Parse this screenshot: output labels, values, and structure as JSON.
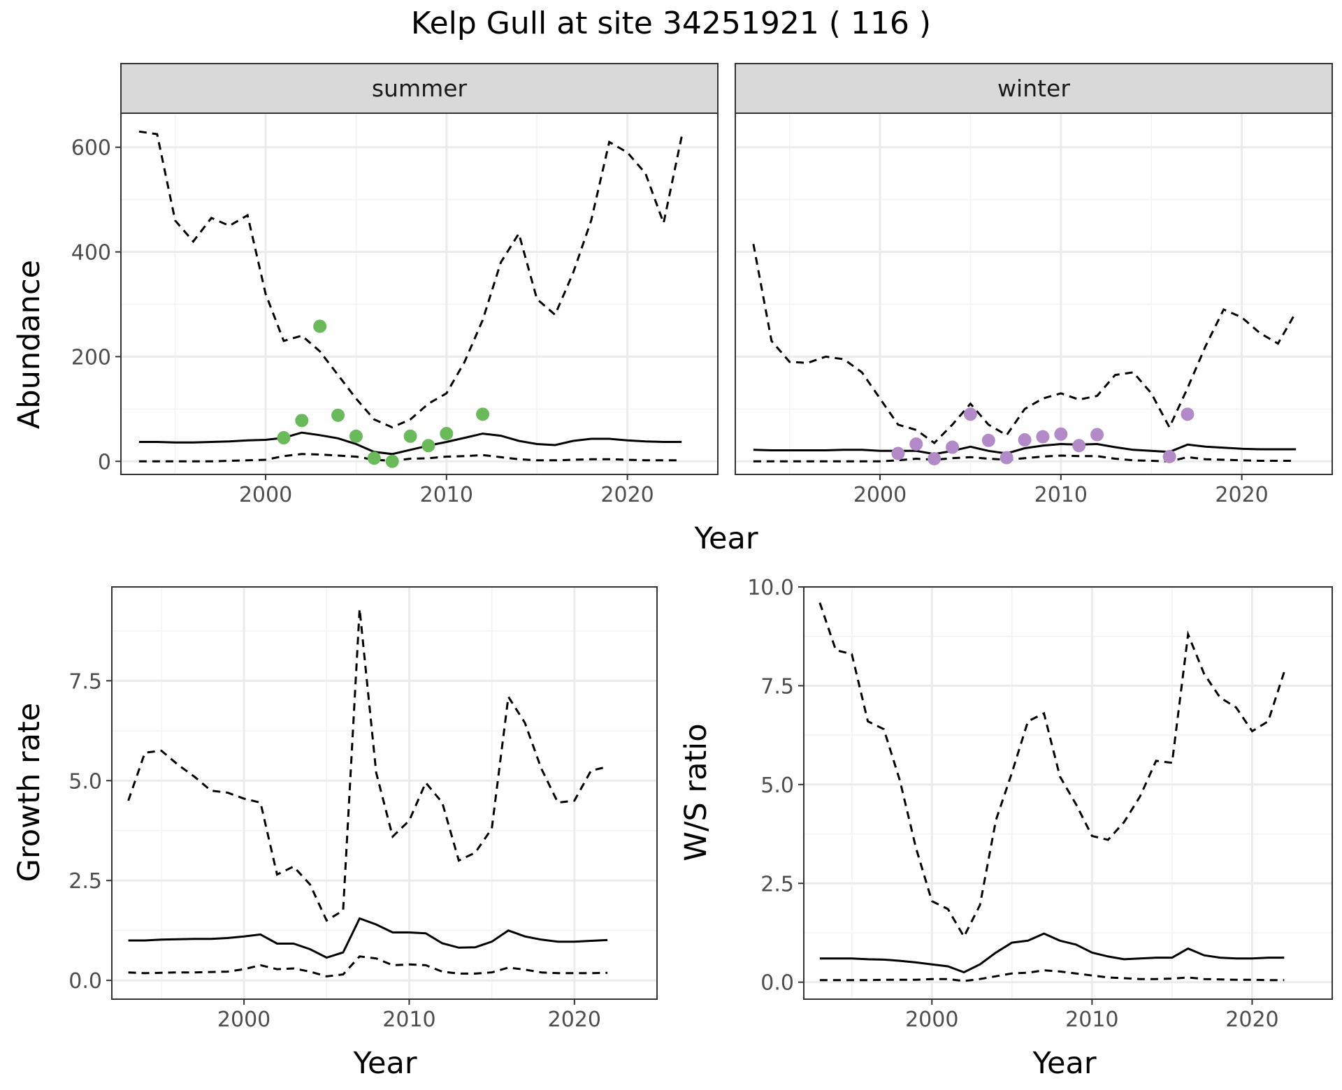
{
  "figure": {
    "title": "Kelp Gull at site 34251921 ( 116 )"
  },
  "chart_data": [
    {
      "type": "line",
      "panel": "abundance",
      "facets": [
        "summer",
        "winter"
      ],
      "xlabel": "Year",
      "ylabel": "Abundance",
      "xlim": [
        1992,
        2025
      ],
      "ylim": [
        -25,
        665
      ],
      "x_ticks": [
        2000,
        2010,
        2020
      ],
      "y_ticks": [
        0,
        200,
        400,
        600
      ],
      "grid": true,
      "legend": "none",
      "series_style": {
        "estimate": "solid",
        "lower": "dashed",
        "upper": "dashed"
      },
      "point_colors": {
        "summer": "#6aba5c",
        "winter": "#b28ac8"
      },
      "panels": [
        {
          "facet": "summer",
          "x": [
            1993,
            1994,
            1995,
            1996,
            1997,
            1998,
            1999,
            2000,
            2001,
            2002,
            2003,
            2004,
            2005,
            2006,
            2007,
            2008,
            2009,
            2010,
            2011,
            2012,
            2013,
            2014,
            2015,
            2016,
            2017,
            2018,
            2019,
            2020,
            2021,
            2022,
            2023
          ],
          "estimate": [
            37,
            37,
            36,
            36,
            37,
            38,
            40,
            41,
            45,
            55,
            50,
            44,
            33,
            18,
            14,
            22,
            30,
            37,
            45,
            53,
            49,
            39,
            33,
            31,
            39,
            43,
            43,
            40,
            38,
            37,
            37
          ],
          "lower": [
            0,
            0,
            0,
            0,
            0,
            1,
            2,
            3,
            10,
            14,
            13,
            11,
            9,
            3,
            1,
            5,
            6,
            9,
            10,
            12,
            8,
            4,
            2,
            2,
            3,
            4,
            4,
            3,
            2,
            2,
            2
          ],
          "upper": [
            630,
            625,
            460,
            420,
            465,
            450,
            470,
            320,
            230,
            240,
            210,
            165,
            120,
            80,
            65,
            80,
            110,
            130,
            190,
            270,
            380,
            435,
            310,
            280,
            360,
            460,
            610,
            590,
            550,
            455,
            620
          ],
          "points": [
            {
              "x": 2001,
              "y": 45
            },
            {
              "x": 2002,
              "y": 78
            },
            {
              "x": 2003,
              "y": 258
            },
            {
              "x": 2004,
              "y": 88
            },
            {
              "x": 2005,
              "y": 48
            },
            {
              "x": 2006,
              "y": 6
            },
            {
              "x": 2007,
              "y": 0
            },
            {
              "x": 2008,
              "y": 48
            },
            {
              "x": 2009,
              "y": 30
            },
            {
              "x": 2010,
              "y": 53
            },
            {
              "x": 2012,
              "y": 90
            }
          ]
        },
        {
          "facet": "winter",
          "x": [
            1993,
            1994,
            1995,
            1996,
            1997,
            1998,
            1999,
            2000,
            2001,
            2002,
            2003,
            2004,
            2005,
            2006,
            2007,
            2008,
            2009,
            2010,
            2011,
            2012,
            2013,
            2014,
            2015,
            2016,
            2017,
            2018,
            2019,
            2020,
            2021,
            2022,
            2023
          ],
          "estimate": [
            22,
            21,
            21,
            21,
            21,
            22,
            22,
            20,
            20,
            20,
            14,
            20,
            28,
            20,
            15,
            25,
            30,
            33,
            32,
            33,
            27,
            22,
            20,
            18,
            32,
            28,
            26,
            24,
            23,
            23,
            23
          ],
          "lower": [
            0,
            0,
            0,
            0,
            0,
            0,
            0,
            0,
            2,
            5,
            3,
            6,
            8,
            5,
            3,
            6,
            9,
            11,
            10,
            10,
            5,
            2,
            1,
            0,
            8,
            4,
            3,
            2,
            1,
            1,
            1
          ],
          "upper": [
            415,
            230,
            190,
            188,
            200,
            195,
            170,
            120,
            70,
            60,
            35,
            70,
            110,
            70,
            50,
            100,
            120,
            130,
            118,
            125,
            165,
            170,
            130,
            65,
            140,
            220,
            290,
            275,
            245,
            225,
            285
          ],
          "points": [
            {
              "x": 2001,
              "y": 15
            },
            {
              "x": 2002,
              "y": 33
            },
            {
              "x": 2003,
              "y": 5
            },
            {
              "x": 2004,
              "y": 27
            },
            {
              "x": 2005,
              "y": 90
            },
            {
              "x": 2006,
              "y": 40
            },
            {
              "x": 2007,
              "y": 7
            },
            {
              "x": 2008,
              "y": 41
            },
            {
              "x": 2009,
              "y": 47
            },
            {
              "x": 2010,
              "y": 52
            },
            {
              "x": 2011,
              "y": 30
            },
            {
              "x": 2012,
              "y": 51
            },
            {
              "x": 2016,
              "y": 9
            },
            {
              "x": 2017,
              "y": 90
            }
          ]
        }
      ]
    },
    {
      "type": "line",
      "panel": "growth",
      "xlabel": "Year",
      "ylabel": "Growth rate",
      "xlim": [
        1992,
        2025
      ],
      "ylim": [
        -0.47,
        9.85
      ],
      "x_ticks": [
        2000,
        2010,
        2020
      ],
      "y_ticks": [
        0.0,
        2.5,
        5.0,
        7.5
      ],
      "y_tick_labels": [
        "0.0",
        "2.5",
        "5.0",
        "7.5"
      ],
      "grid": true,
      "legend": "none",
      "series_style": {
        "estimate": "solid",
        "lower": "dashed",
        "upper": "dashed"
      },
      "x": [
        1993,
        1994,
        1995,
        1996,
        1997,
        1998,
        1999,
        2000,
        2001,
        2002,
        2003,
        2004,
        2005,
        2006,
        2007,
        2008,
        2009,
        2010,
        2011,
        2012,
        2013,
        2014,
        2015,
        2016,
        2017,
        2018,
        2019,
        2020,
        2021,
        2022
      ],
      "estimate": [
        1.0,
        1.0,
        1.02,
        1.03,
        1.04,
        1.04,
        1.06,
        1.1,
        1.15,
        0.92,
        0.92,
        0.78,
        0.57,
        0.7,
        1.55,
        1.4,
        1.2,
        1.2,
        1.18,
        0.93,
        0.82,
        0.83,
        0.97,
        1.25,
        1.1,
        1.02,
        0.97,
        0.97,
        0.99,
        1.01
      ],
      "lower": [
        0.2,
        0.18,
        0.19,
        0.2,
        0.2,
        0.21,
        0.22,
        0.28,
        0.38,
        0.28,
        0.3,
        0.22,
        0.1,
        0.15,
        0.6,
        0.55,
        0.38,
        0.4,
        0.38,
        0.22,
        0.17,
        0.17,
        0.2,
        0.32,
        0.27,
        0.2,
        0.18,
        0.18,
        0.18,
        0.19
      ],
      "upper": [
        4.5,
        5.7,
        5.75,
        5.4,
        5.1,
        4.75,
        4.7,
        4.55,
        4.45,
        2.65,
        2.85,
        2.4,
        1.5,
        1.75,
        9.3,
        5.2,
        3.6,
        4.0,
        4.95,
        4.45,
        3.0,
        3.2,
        3.8,
        7.1,
        6.45,
        5.3,
        4.45,
        4.5,
        5.25,
        5.35
      ]
    },
    {
      "type": "line",
      "panel": "ratio",
      "xlabel": "Year",
      "ylabel": "W/S ratio",
      "xlim": [
        1992,
        2025
      ],
      "ylim": [
        -0.43,
        10.0
      ],
      "x_ticks": [
        2000,
        2010,
        2020
      ],
      "y_ticks": [
        0.0,
        2.5,
        5.0,
        7.5,
        10.0
      ],
      "y_tick_labels": [
        "0.0",
        "2.5",
        "5.0",
        "7.5",
        "10.0"
      ],
      "grid": true,
      "legend": "none",
      "series_style": {
        "estimate": "solid",
        "lower": "dashed",
        "upper": "dashed"
      },
      "x": [
        1993,
        1994,
        1995,
        1996,
        1997,
        1998,
        1999,
        2000,
        2001,
        2002,
        2003,
        2004,
        2005,
        2006,
        2007,
        2008,
        2009,
        2010,
        2011,
        2012,
        2013,
        2014,
        2015,
        2016,
        2017,
        2018,
        2019,
        2020,
        2021,
        2022
      ],
      "estimate": [
        0.6,
        0.6,
        0.6,
        0.58,
        0.57,
        0.54,
        0.5,
        0.45,
        0.4,
        0.25,
        0.45,
        0.75,
        1.0,
        1.05,
        1.23,
        1.05,
        0.95,
        0.75,
        0.65,
        0.58,
        0.6,
        0.62,
        0.62,
        0.85,
        0.68,
        0.62,
        0.6,
        0.6,
        0.62,
        0.62
      ],
      "lower": [
        0.05,
        0.05,
        0.05,
        0.05,
        0.06,
        0.06,
        0.06,
        0.08,
        0.08,
        0.03,
        0.08,
        0.15,
        0.22,
        0.24,
        0.3,
        0.27,
        0.22,
        0.17,
        0.12,
        0.1,
        0.08,
        0.08,
        0.09,
        0.12,
        0.08,
        0.07,
        0.06,
        0.06,
        0.05,
        0.05
      ],
      "upper": [
        9.6,
        8.4,
        8.3,
        6.6,
        6.4,
        5.1,
        3.4,
        2.05,
        1.85,
        1.15,
        1.95,
        4.1,
        5.3,
        6.6,
        6.8,
        5.2,
        4.5,
        3.7,
        3.6,
        4.05,
        4.7,
        5.6,
        5.55,
        8.8,
        7.8,
        7.2,
        6.95,
        6.35,
        6.6,
        7.85
      ]
    }
  ]
}
